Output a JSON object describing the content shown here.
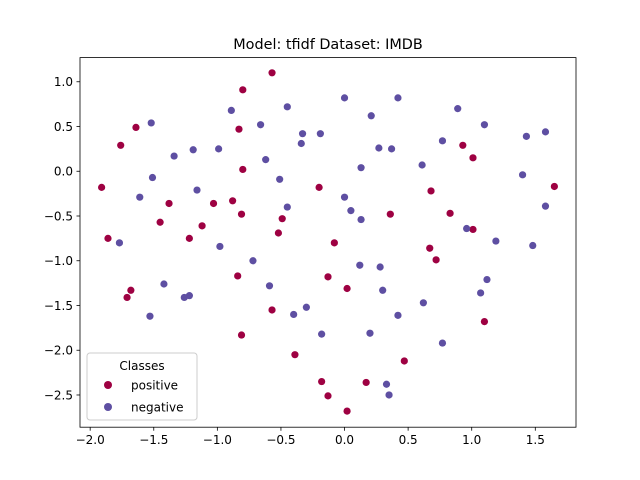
{
  "chart_data": {
    "type": "scatter",
    "title": "Model: tfidf      Dataset: IMDB",
    "xlabel": "",
    "ylabel": "",
    "xlim": [
      -2.08,
      1.82
    ],
    "ylim": [
      -2.86,
      1.27
    ],
    "xticks": [
      -2.0,
      -1.5,
      -1.0,
      -0.5,
      0.0,
      0.5,
      1.0,
      1.5
    ],
    "xtick_labels": [
      "−2.0",
      "−1.5",
      "−1.0",
      "−0.5",
      "0.0",
      "0.5",
      "1.0",
      "1.5"
    ],
    "yticks": [
      -2.5,
      -2.0,
      -1.5,
      -1.0,
      -0.5,
      0.0,
      0.5,
      1.0
    ],
    "ytick_labels": [
      "−2.5",
      "−2.0",
      "−1.5",
      "−1.0",
      "−0.5",
      "0.0",
      "0.5",
      "1.0"
    ],
    "grid": false,
    "legend": {
      "title": "Classes",
      "placement": "lower-left"
    },
    "series": [
      {
        "name": "positive",
        "color": "#9e0142",
        "points": [
          [
            -0.57,
            1.1
          ],
          [
            -0.8,
            0.91
          ],
          [
            -1.64,
            0.49
          ],
          [
            -0.83,
            0.47
          ],
          [
            -1.76,
            0.29
          ],
          [
            -1.91,
            -0.18
          ],
          [
            -0.8,
            0.02
          ],
          [
            -0.2,
            -0.18
          ],
          [
            -1.38,
            -0.36
          ],
          [
            -1.03,
            -0.36
          ],
          [
            -0.88,
            -0.33
          ],
          [
            -0.81,
            -0.48
          ],
          [
            -0.49,
            -0.53
          ],
          [
            -1.45,
            -0.57
          ],
          [
            -1.12,
            -0.61
          ],
          [
            -0.52,
            -0.69
          ],
          [
            -1.86,
            -0.75
          ],
          [
            -1.22,
            -0.75
          ],
          [
            -0.08,
            -0.8
          ],
          [
            0.36,
            -0.48
          ],
          [
            0.68,
            -0.22
          ],
          [
            0.93,
            0.29
          ],
          [
            1.01,
            0.15
          ],
          [
            1.65,
            -0.17
          ],
          [
            0.83,
            -0.47
          ],
          [
            1.01,
            -0.65
          ],
          [
            0.67,
            -0.86
          ],
          [
            0.72,
            -0.99
          ],
          [
            -0.84,
            -1.17
          ],
          [
            -0.13,
            -1.18
          ],
          [
            -1.68,
            -1.33
          ],
          [
            -1.71,
            -1.41
          ],
          [
            0.02,
            -1.31
          ],
          [
            -0.57,
            -1.55
          ],
          [
            1.1,
            -1.68
          ],
          [
            -0.81,
            -1.83
          ],
          [
            -0.39,
            -2.05
          ],
          [
            0.47,
            -2.12
          ],
          [
            -0.18,
            -2.35
          ],
          [
            0.17,
            -2.36
          ],
          [
            -0.13,
            -2.51
          ],
          [
            0.02,
            -2.68
          ]
        ]
      },
      {
        "name": "negative",
        "color": "#5e4fa2",
        "points": [
          [
            -0.45,
            0.72
          ],
          [
            -0.89,
            0.68
          ],
          [
            -0.66,
            0.52
          ],
          [
            -1.52,
            0.54
          ],
          [
            -0.33,
            0.42
          ],
          [
            -0.19,
            0.42
          ],
          [
            -0.34,
            0.31
          ],
          [
            -1.19,
            0.24
          ],
          [
            -0.99,
            0.25
          ],
          [
            -1.34,
            0.17
          ],
          [
            -0.62,
            0.13
          ],
          [
            0.0,
            0.82
          ],
          [
            0.42,
            0.82
          ],
          [
            0.21,
            0.62
          ],
          [
            0.89,
            0.7
          ],
          [
            1.1,
            0.52
          ],
          [
            0.77,
            0.34
          ],
          [
            1.43,
            0.39
          ],
          [
            1.58,
            0.44
          ],
          [
            0.27,
            0.26
          ],
          [
            0.37,
            0.25
          ],
          [
            0.61,
            0.07
          ],
          [
            0.13,
            0.04
          ],
          [
            -1.51,
            -0.07
          ],
          [
            -0.51,
            -0.09
          ],
          [
            -1.16,
            -0.21
          ],
          [
            -1.61,
            -0.29
          ],
          [
            -0.45,
            -0.4
          ],
          [
            0.0,
            -0.29
          ],
          [
            0.05,
            -0.44
          ],
          [
            0.13,
            -0.54
          ],
          [
            1.4,
            -0.04
          ],
          [
            1.58,
            -0.39
          ],
          [
            0.96,
            -0.64
          ],
          [
            1.19,
            -0.78
          ],
          [
            1.48,
            -0.83
          ],
          [
            -1.77,
            -0.8
          ],
          [
            -0.98,
            -0.84
          ],
          [
            -0.72,
            -1.0
          ],
          [
            0.12,
            -1.05
          ],
          [
            0.28,
            -1.07
          ],
          [
            1.12,
            -1.21
          ],
          [
            1.07,
            -1.36
          ],
          [
            -1.42,
            -1.26
          ],
          [
            -0.59,
            -1.28
          ],
          [
            0.3,
            -1.33
          ],
          [
            -1.22,
            -1.39
          ],
          [
            -1.26,
            -1.41
          ],
          [
            0.62,
            -1.47
          ],
          [
            -0.3,
            -1.52
          ],
          [
            -1.53,
            -1.62
          ],
          [
            -0.4,
            -1.6
          ],
          [
            0.42,
            -1.61
          ],
          [
            -0.18,
            -1.82
          ],
          [
            0.2,
            -1.81
          ],
          [
            0.77,
            -1.92
          ],
          [
            0.33,
            -2.38
          ],
          [
            0.35,
            -2.5
          ]
        ]
      }
    ]
  }
}
